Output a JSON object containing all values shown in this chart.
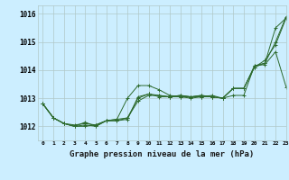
{
  "title": "Graphe pression niveau de la mer (hPa)",
  "background_color": "#cceeff",
  "grid_color": "#b0c8c8",
  "line_color": "#2d6a2d",
  "xlim": [
    -0.5,
    23
  ],
  "ylim": [
    1011.5,
    1016.3
  ],
  "yticks": [
    1012,
    1013,
    1014,
    1015,
    1016
  ],
  "xticks": [
    0,
    1,
    2,
    3,
    4,
    5,
    6,
    7,
    8,
    9,
    10,
    11,
    12,
    13,
    14,
    15,
    16,
    17,
    18,
    19,
    20,
    21,
    22,
    23
  ],
  "line1": [
    1012.8,
    1012.3,
    1012.1,
    1012.0,
    1012.15,
    1012.0,
    1012.2,
    1012.2,
    1012.25,
    1013.05,
    1013.15,
    1013.1,
    1013.05,
    1013.1,
    1013.05,
    1013.1,
    1013.05,
    1013.0,
    1013.35,
    1013.35,
    1014.15,
    1014.25,
    1015.0,
    1015.9
  ],
  "line2": [
    1012.8,
    1012.3,
    1012.1,
    1012.05,
    1012.1,
    1012.05,
    1012.2,
    1012.2,
    1012.3,
    1012.9,
    1013.1,
    1013.1,
    1013.05,
    1013.1,
    1013.05,
    1013.05,
    1013.1,
    1013.0,
    1013.1,
    1013.1,
    1014.15,
    1014.2,
    1014.65,
    1013.4
  ],
  "line3": [
    1012.8,
    1012.3,
    1012.1,
    1012.0,
    1012.0,
    1012.05,
    1012.2,
    1012.25,
    1013.0,
    1013.45,
    1013.45,
    1013.3,
    1013.1,
    1013.05,
    1013.0,
    1013.05,
    1013.05,
    1013.0,
    1013.35,
    1013.35,
    1014.1,
    1014.35,
    1014.9,
    1015.85
  ],
  "line4": [
    1012.8,
    1012.3,
    1012.1,
    1012.0,
    1012.05,
    1012.0,
    1012.2,
    1012.25,
    1012.3,
    1013.0,
    1013.15,
    1013.05,
    1013.05,
    1013.05,
    1013.05,
    1013.1,
    1013.05,
    1013.0,
    1013.35,
    1013.35,
    1014.1,
    1014.25,
    1015.5,
    1015.85
  ]
}
